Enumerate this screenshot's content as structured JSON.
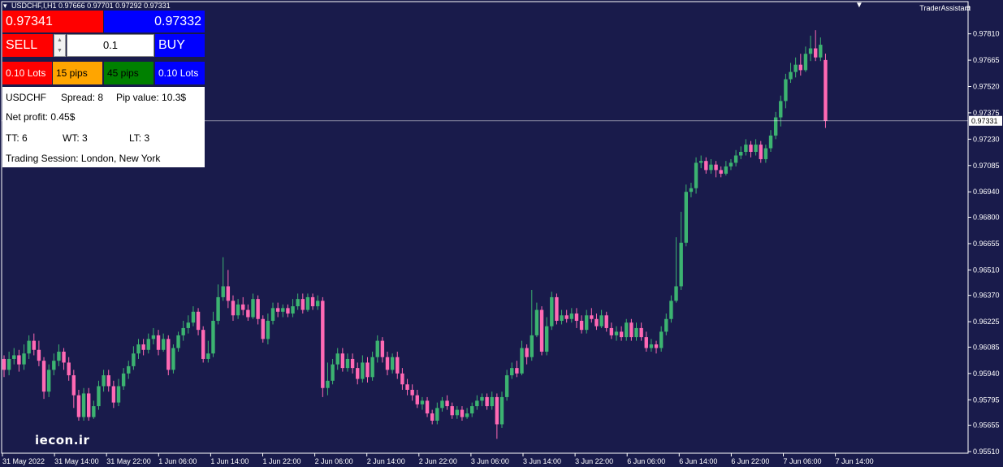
{
  "header": {
    "symbol_line": "USDCHF,I,H1  0.97666 0.97701 0.97292 0.97331",
    "assistant_label": "TraderAssistant",
    "assistant_icon": "smiley-icon"
  },
  "panel": {
    "bid": "0.97341",
    "ask": "0.97332",
    "sell_label": "SELL",
    "buy_label": "BUY",
    "lot_value": "0.1",
    "quick_buttons": [
      "0.10 Lots",
      "15 pips",
      "45 pips",
      "0.10 Lots"
    ],
    "symbol": "USDCHF",
    "spread": "Spread: 8",
    "pip_value": "Pip value: 10.3$",
    "net_profit": "Net profit: 0.45$",
    "tt": "TT: 6",
    "wt": "WT: 3",
    "lt": "LT: 3",
    "session": "Trading Session: London, New York"
  },
  "watermark": "iecon.ir",
  "colors": {
    "background": "#191b4b",
    "bull": "#3cb371",
    "bear": "#ff69b4",
    "sell": "#ff0000",
    "buy": "#0000ff",
    "orange": "#ffa500",
    "green": "#008000"
  },
  "chart_data": {
    "type": "candlestick",
    "symbol": "USDCHF",
    "timeframe": "H1",
    "ylim": [
      0.9551,
      0.9788
    ],
    "price_ticks": [
      "0.97810",
      "0.97665",
      "0.97520",
      "0.97375",
      "0.97230",
      "0.97085",
      "0.96940",
      "0.96800",
      "0.96655",
      "0.96510",
      "0.96370",
      "0.96225",
      "0.96085",
      "0.95940",
      "0.95795",
      "0.95655",
      "0.95510"
    ],
    "current_price": "0.97331",
    "time_ticks": [
      "31 May 2022",
      "31 May 14:00",
      "31 May 22:00",
      "1 Jun 06:00",
      "1 Jun 14:00",
      "1 Jun 22:00",
      "2 Jun 06:00",
      "2 Jun 14:00",
      "2 Jun 22:00",
      "3 Jun 06:00",
      "3 Jun 14:00",
      "3 Jun 22:00",
      "6 Jun 06:00",
      "6 Jun 14:00",
      "6 Jun 22:00",
      "7 Jun 06:00",
      "7 Jun 14:00"
    ],
    "candles": [
      [
        0.9602,
        0.9596,
        0.9604,
        0.9592
      ],
      [
        0.9596,
        0.9602,
        0.9606,
        0.9593
      ],
      [
        0.9602,
        0.9604,
        0.9608,
        0.9599
      ],
      [
        0.9604,
        0.9599,
        0.9607,
        0.9595
      ],
      [
        0.9599,
        0.9605,
        0.961,
        0.9596
      ],
      [
        0.9605,
        0.9612,
        0.9615,
        0.9602
      ],
      [
        0.9612,
        0.9607,
        0.9616,
        0.9604
      ],
      [
        0.9607,
        0.9601,
        0.9612,
        0.9598
      ],
      [
        0.9601,
        0.9584,
        0.9603,
        0.958
      ],
      [
        0.9584,
        0.9596,
        0.9599,
        0.9581
      ],
      [
        0.9596,
        0.9601,
        0.9605,
        0.9593
      ],
      [
        0.9601,
        0.9606,
        0.961,
        0.9598
      ],
      [
        0.9606,
        0.96,
        0.9608,
        0.9596
      ],
      [
        0.96,
        0.9593,
        0.9603,
        0.959
      ],
      [
        0.9593,
        0.9582,
        0.9596,
        0.9575
      ],
      [
        0.9582,
        0.957,
        0.9585,
        0.9568
      ],
      [
        0.957,
        0.9583,
        0.9586,
        0.9568
      ],
      [
        0.9583,
        0.957,
        0.9586,
        0.9568
      ],
      [
        0.957,
        0.9576,
        0.9579,
        0.9569
      ],
      [
        0.9576,
        0.9587,
        0.959,
        0.9574
      ],
      [
        0.9587,
        0.9593,
        0.9596,
        0.9584
      ],
      [
        0.9593,
        0.9587,
        0.9596,
        0.9584
      ],
      [
        0.9587,
        0.9578,
        0.959,
        0.9575
      ],
      [
        0.9578,
        0.9587,
        0.9591,
        0.9576
      ],
      [
        0.9587,
        0.9594,
        0.9597,
        0.9585
      ],
      [
        0.9594,
        0.9598,
        0.9601,
        0.9591
      ],
      [
        0.9598,
        0.9605,
        0.9609,
        0.9596
      ],
      [
        0.9605,
        0.961,
        0.9613,
        0.9602
      ],
      [
        0.961,
        0.9607,
        0.9613,
        0.9604
      ],
      [
        0.9607,
        0.9613,
        0.9616,
        0.9605
      ],
      [
        0.9613,
        0.9615,
        0.9619,
        0.961
      ],
      [
        0.9615,
        0.9607,
        0.9618,
        0.9604
      ],
      [
        0.9607,
        0.9613,
        0.9616,
        0.9606
      ],
      [
        0.9613,
        0.9596,
        0.9615,
        0.9593
      ],
      [
        0.9596,
        0.9608,
        0.961,
        0.9594
      ],
      [
        0.9608,
        0.9615,
        0.9617,
        0.9606
      ],
      [
        0.9615,
        0.9619,
        0.9623,
        0.9612
      ],
      [
        0.9619,
        0.9622,
        0.9626,
        0.9616
      ],
      [
        0.9622,
        0.9628,
        0.9631,
        0.962
      ],
      [
        0.9628,
        0.9618,
        0.963,
        0.9615
      ],
      [
        0.9618,
        0.9602,
        0.962,
        0.96
      ],
      [
        0.9602,
        0.9605,
        0.9612,
        0.96
      ],
      [
        0.9605,
        0.9623,
        0.9628,
        0.9603
      ],
      [
        0.9623,
        0.9636,
        0.9643,
        0.9621
      ],
      [
        0.9636,
        0.9642,
        0.9658,
        0.9634
      ],
      [
        0.9642,
        0.9634,
        0.9651,
        0.963
      ],
      [
        0.9634,
        0.9626,
        0.9637,
        0.9623
      ],
      [
        0.9626,
        0.9632,
        0.9635,
        0.9624
      ],
      [
        0.9632,
        0.9629,
        0.9636,
        0.9626
      ],
      [
        0.9629,
        0.9625,
        0.9632,
        0.9623
      ],
      [
        0.9625,
        0.9635,
        0.9638,
        0.9624
      ],
      [
        0.9635,
        0.9624,
        0.9637,
        0.9621
      ],
      [
        0.9624,
        0.9613,
        0.9626,
        0.9611
      ],
      [
        0.9613,
        0.9623,
        0.9627,
        0.961
      ],
      [
        0.9623,
        0.963,
        0.9633,
        0.9621
      ],
      [
        0.963,
        0.9628,
        0.9633,
        0.9625
      ],
      [
        0.9628,
        0.963,
        0.9632,
        0.9625
      ],
      [
        0.963,
        0.9627,
        0.9632,
        0.9625
      ],
      [
        0.9627,
        0.9631,
        0.9635,
        0.9625
      ],
      [
        0.9631,
        0.9635,
        0.9638,
        0.9629
      ],
      [
        0.9635,
        0.9629,
        0.9638,
        0.9627
      ],
      [
        0.9629,
        0.9636,
        0.9638,
        0.9628
      ],
      [
        0.9636,
        0.9631,
        0.9638,
        0.9629
      ],
      [
        0.9631,
        0.9634,
        0.9637,
        0.9629
      ],
      [
        0.9634,
        0.9586,
        0.9636,
        0.9581
      ],
      [
        0.9586,
        0.959,
        0.96,
        0.9582
      ],
      [
        0.959,
        0.9599,
        0.9602,
        0.9588
      ],
      [
        0.9599,
        0.9605,
        0.9608,
        0.9596
      ],
      [
        0.9605,
        0.9597,
        0.9608,
        0.9595
      ],
      [
        0.9597,
        0.9602,
        0.9605,
        0.9595
      ],
      [
        0.9602,
        0.9597,
        0.9605,
        0.9594
      ],
      [
        0.9597,
        0.9591,
        0.96,
        0.9588
      ],
      [
        0.9591,
        0.96,
        0.9604,
        0.9589
      ],
      [
        0.96,
        0.9592,
        0.9603,
        0.9589
      ],
      [
        0.9592,
        0.9603,
        0.9606,
        0.959
      ],
      [
        0.9603,
        0.9612,
        0.9615,
        0.96
      ],
      [
        0.9612,
        0.9603,
        0.9614,
        0.96
      ],
      [
        0.9603,
        0.9596,
        0.9606,
        0.9593
      ],
      [
        0.9596,
        0.9603,
        0.9605,
        0.9594
      ],
      [
        0.9603,
        0.9594,
        0.9606,
        0.9591
      ],
      [
        0.9594,
        0.9588,
        0.9597,
        0.9585
      ],
      [
        0.9588,
        0.9585,
        0.9591,
        0.9582
      ],
      [
        0.9585,
        0.9582,
        0.9588,
        0.9579
      ],
      [
        0.9582,
        0.9577,
        0.9585,
        0.9575
      ],
      [
        0.9577,
        0.9579,
        0.9581,
        0.9574
      ],
      [
        0.9579,
        0.9572,
        0.9581,
        0.957
      ],
      [
        0.9572,
        0.9568,
        0.9574,
        0.9566
      ],
      [
        0.9568,
        0.9575,
        0.9578,
        0.9566
      ],
      [
        0.9575,
        0.9579,
        0.9581,
        0.9573
      ],
      [
        0.9579,
        0.9576,
        0.9582,
        0.9574
      ],
      [
        0.9576,
        0.9571,
        0.9578,
        0.9569
      ],
      [
        0.9571,
        0.9574,
        0.9576,
        0.9569
      ],
      [
        0.9574,
        0.957,
        0.9576,
        0.9568
      ],
      [
        0.957,
        0.9572,
        0.9575,
        0.9569
      ],
      [
        0.9572,
        0.9576,
        0.9578,
        0.957
      ],
      [
        0.9576,
        0.9579,
        0.9582,
        0.9574
      ],
      [
        0.9579,
        0.9581,
        0.9583,
        0.9576
      ],
      [
        0.9581,
        0.9576,
        0.9583,
        0.9574
      ],
      [
        0.9576,
        0.9581,
        0.9584,
        0.9574
      ],
      [
        0.9581,
        0.9566,
        0.9583,
        0.9558
      ],
      [
        0.9566,
        0.9581,
        0.9584,
        0.9564
      ],
      [
        0.9581,
        0.9593,
        0.9596,
        0.9579
      ],
      [
        0.9593,
        0.9597,
        0.96,
        0.9591
      ],
      [
        0.9597,
        0.9594,
        0.9601,
        0.9592
      ],
      [
        0.9594,
        0.9608,
        0.9612,
        0.9593
      ],
      [
        0.9608,
        0.9603,
        0.961,
        0.9599
      ],
      [
        0.9603,
        0.9615,
        0.964,
        0.9601
      ],
      [
        0.9615,
        0.9629,
        0.9633,
        0.9614
      ],
      [
        0.9629,
        0.9606,
        0.9631,
        0.9604
      ],
      [
        0.9606,
        0.962,
        0.9625,
        0.9604
      ],
      [
        0.962,
        0.9636,
        0.9639,
        0.9618
      ],
      [
        0.9636,
        0.9623,
        0.9638,
        0.9621
      ],
      [
        0.9623,
        0.9626,
        0.9629,
        0.9621
      ],
      [
        0.9626,
        0.9624,
        0.9629,
        0.9622
      ],
      [
        0.9624,
        0.9627,
        0.963,
        0.9622
      ],
      [
        0.9627,
        0.9623,
        0.963,
        0.9619
      ],
      [
        0.9623,
        0.9618,
        0.9626,
        0.9616
      ],
      [
        0.9618,
        0.9626,
        0.9629,
        0.9616
      ],
      [
        0.9626,
        0.9624,
        0.963,
        0.9622
      ],
      [
        0.9624,
        0.962,
        0.9627,
        0.9618
      ],
      [
        0.962,
        0.9626,
        0.9629,
        0.9619
      ],
      [
        0.9626,
        0.9619,
        0.9628,
        0.9617
      ],
      [
        0.9619,
        0.9615,
        0.9622,
        0.9613
      ],
      [
        0.9615,
        0.9617,
        0.962,
        0.9612
      ],
      [
        0.9617,
        0.9614,
        0.962,
        0.9612
      ],
      [
        0.9614,
        0.9622,
        0.9624,
        0.9612
      ],
      [
        0.9622,
        0.9614,
        0.9624,
        0.9612
      ],
      [
        0.9614,
        0.9619,
        0.9622,
        0.9612
      ],
      [
        0.9619,
        0.9614,
        0.9622,
        0.9612
      ],
      [
        0.9614,
        0.9608,
        0.9617,
        0.9606
      ],
      [
        0.9608,
        0.961,
        0.9613,
        0.9606
      ],
      [
        0.961,
        0.9608,
        0.9612,
        0.9605
      ],
      [
        0.9608,
        0.9617,
        0.962,
        0.9606
      ],
      [
        0.9617,
        0.9624,
        0.9627,
        0.9615
      ],
      [
        0.9624,
        0.9634,
        0.9637,
        0.9622
      ],
      [
        0.9634,
        0.9642,
        0.9669,
        0.9633
      ],
      [
        0.9642,
        0.9666,
        0.9683,
        0.964
      ],
      [
        0.9666,
        0.9694,
        0.9698,
        0.9664
      ],
      [
        0.9694,
        0.9696,
        0.9699,
        0.9691
      ],
      [
        0.9696,
        0.971,
        0.9713,
        0.9693
      ],
      [
        0.971,
        0.9711,
        0.9714,
        0.9707
      ],
      [
        0.9711,
        0.9706,
        0.9713,
        0.9704
      ],
      [
        0.9706,
        0.9709,
        0.9712,
        0.9704
      ],
      [
        0.9709,
        0.9706,
        0.9711,
        0.9702
      ],
      [
        0.9706,
        0.9704,
        0.9708,
        0.9702
      ],
      [
        0.9704,
        0.9708,
        0.9711,
        0.9703
      ],
      [
        0.9708,
        0.971,
        0.9712,
        0.9706
      ],
      [
        0.971,
        0.9714,
        0.9717,
        0.9708
      ],
      [
        0.9714,
        0.9716,
        0.9719,
        0.9712
      ],
      [
        0.9716,
        0.972,
        0.9723,
        0.9714
      ],
      [
        0.972,
        0.9716,
        0.9722,
        0.9713
      ],
      [
        0.9716,
        0.972,
        0.9723,
        0.9714
      ],
      [
        0.972,
        0.9712,
        0.9722,
        0.971
      ],
      [
        0.9712,
        0.9718,
        0.972,
        0.971
      ],
      [
        0.9718,
        0.9725,
        0.9728,
        0.9716
      ],
      [
        0.9725,
        0.9735,
        0.9738,
        0.9723
      ],
      [
        0.9735,
        0.9744,
        0.9747,
        0.973
      ],
      [
        0.9744,
        0.9756,
        0.9759,
        0.974
      ],
      [
        0.9756,
        0.976,
        0.9765,
        0.9754
      ],
      [
        0.976,
        0.9764,
        0.9768,
        0.9757
      ],
      [
        0.9764,
        0.9761,
        0.977,
        0.9758
      ],
      [
        0.9761,
        0.977,
        0.9774,
        0.976
      ],
      [
        0.977,
        0.9773,
        0.978,
        0.9766
      ],
      [
        0.9773,
        0.9768,
        0.9783,
        0.9766
      ],
      [
        0.9768,
        0.9775,
        0.9779,
        0.9766
      ],
      [
        0.97666,
        0.97331,
        0.97701,
        0.97292
      ]
    ]
  }
}
